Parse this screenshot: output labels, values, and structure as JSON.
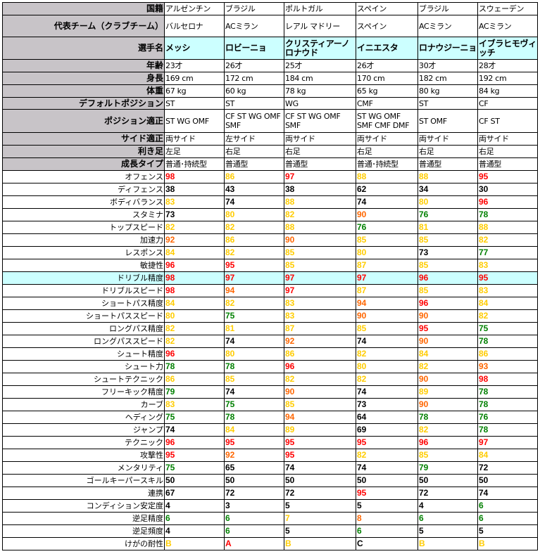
{
  "colors": {
    "r": "#ff0000",
    "o": "#ff6600",
    "y": "#ffcc00",
    "g": "#008000",
    "k": "#000000",
    "label_bg": "#c8c4c8",
    "highlight_bg": "#ccffff"
  },
  "info_rows": [
    {
      "label": "国籍",
      "values": [
        "アルゼンチン",
        "ブラジル",
        "ポルトガル",
        "スペイン",
        "ブラジル",
        "スウェーデン"
      ]
    },
    {
      "label": "代表チーム（クラブチーム）",
      "values": [
        "バルセロナ",
        "ACミラン",
        "レアル マドリー",
        "スペイン",
        "ACミラン",
        "ACミラン"
      ]
    },
    {
      "label": "選手名",
      "values": [
        "メッシ",
        "ロビーニョ",
        "クリスティアーノ ロナウド",
        "イニエスタ",
        "ロナウジーニョ",
        "イブラヒモヴィッチ"
      ],
      "name_row": true
    },
    {
      "label": "年齢",
      "values": [
        "23才",
        "26才",
        "25才",
        "26才",
        "30才",
        "28才"
      ]
    },
    {
      "label": "身長",
      "values": [
        "169 cm",
        "172 cm",
        "184 cm",
        "170 cm",
        "182 cm",
        "192 cm"
      ]
    },
    {
      "label": "体重",
      "values": [
        "67 kg",
        "60 kg",
        "78 kg",
        "65 kg",
        "80 kg",
        "84 kg"
      ]
    },
    {
      "label": "デフォルトポジション",
      "values": [
        "ST",
        "ST",
        "WG",
        "CMF",
        "ST",
        "CF"
      ]
    },
    {
      "label": "ポジション適正",
      "values": [
        "ST WG OMF",
        "CF ST WG OMF SMF",
        "CF ST WG OMF SMF",
        "ST WG OMF SMF CMF DMF",
        "ST OMF",
        "CF ST"
      ]
    },
    {
      "label": "サイド適正",
      "values": [
        "両サイド",
        "左サイド",
        "両サイド",
        "両サイド",
        "両サイド",
        "両サイド"
      ]
    },
    {
      "label": "利き足",
      "values": [
        "左足",
        "右足",
        "右足",
        "右足",
        "右足",
        "右足"
      ]
    },
    {
      "label": "成長タイプ",
      "values": [
        "普通･持続型",
        "普通型",
        "普通型",
        "普通･持続型",
        "普通型",
        "普通型"
      ]
    }
  ],
  "stat_rows": [
    {
      "label": "オフェンス",
      "values": [
        "98",
        "86",
        "97",
        "88",
        "88",
        "95"
      ],
      "colors": "ryryyr"
    },
    {
      "label": "ディフェンス",
      "values": [
        "38",
        "43",
        "38",
        "62",
        "34",
        "30"
      ],
      "colors": "kkkkkk"
    },
    {
      "label": "ボディバランス",
      "values": [
        "83",
        "74",
        "88",
        "74",
        "80",
        "96"
      ],
      "colors": "ykykyr"
    },
    {
      "label": "スタミナ",
      "values": [
        "73",
        "80",
        "82",
        "90",
        "76",
        "78"
      ],
      "colors": "kyyogg"
    },
    {
      "label": "トップスピード",
      "values": [
        "82",
        "82",
        "88",
        "76",
        "81",
        "88"
      ],
      "colors": "yyygyy"
    },
    {
      "label": "加速力",
      "values": [
        "92",
        "86",
        "90",
        "85",
        "85",
        "82"
      ],
      "colors": "oyoyyy"
    },
    {
      "label": "レスポンス",
      "values": [
        "84",
        "82",
        "85",
        "80",
        "73",
        "77"
      ],
      "colors": "yyyykg"
    },
    {
      "label": "敏捷性",
      "values": [
        "96",
        "95",
        "85",
        "87",
        "85",
        "83"
      ],
      "colors": "rryyyy"
    },
    {
      "label": "ドリブル精度",
      "values": [
        "98",
        "97",
        "97",
        "97",
        "96",
        "95"
      ],
      "colors": "rrrrrr",
      "highlight": true
    },
    {
      "label": "ドリブルスピード",
      "values": [
        "98",
        "94",
        "97",
        "87",
        "85",
        "83"
      ],
      "colors": "roryyy"
    },
    {
      "label": "ショートパス精度",
      "values": [
        "84",
        "82",
        "83",
        "94",
        "96",
        "84"
      ],
      "colors": "yyyory"
    },
    {
      "label": "ショートパススピード",
      "values": [
        "80",
        "75",
        "83",
        "90",
        "90",
        "82"
      ],
      "colors": "ygyooy"
    },
    {
      "label": "ロングパス精度",
      "values": [
        "82",
        "81",
        "87",
        "85",
        "95",
        "75"
      ],
      "colors": "yyyyrg"
    },
    {
      "label": "ロングパススピード",
      "values": [
        "82",
        "74",
        "92",
        "74",
        "90",
        "78"
      ],
      "colors": "ykokog"
    },
    {
      "label": "シュート精度",
      "values": [
        "96",
        "80",
        "86",
        "82",
        "84",
        "86"
      ],
      "colors": "ryyyyy"
    },
    {
      "label": "シュート力",
      "values": [
        "78",
        "78",
        "96",
        "80",
        "82",
        "93"
      ],
      "colors": "ggryyo"
    },
    {
      "label": "シュートテクニック",
      "values": [
        "86",
        "85",
        "82",
        "82",
        "90",
        "98"
      ],
      "colors": "yyyyor"
    },
    {
      "label": "フリーキック精度",
      "values": [
        "79",
        "74",
        "90",
        "74",
        "89",
        "78"
      ],
      "colors": "gkokyg"
    },
    {
      "label": "カーブ",
      "values": [
        "83",
        "75",
        "85",
        "73",
        "90",
        "78"
      ],
      "colors": "ygykog"
    },
    {
      "label": "ヘディング",
      "values": [
        "75",
        "78",
        "94",
        "64",
        "78",
        "76"
      ],
      "colors": "ggokgg"
    },
    {
      "label": "ジャンプ",
      "values": [
        "74",
        "84",
        "89",
        "69",
        "82",
        "78"
      ],
      "colors": "kyykyg"
    },
    {
      "label": "テクニック",
      "values": [
        "96",
        "95",
        "95",
        "95",
        "96",
        "97"
      ],
      "colors": "rrrrrr"
    },
    {
      "label": "攻撃性",
      "values": [
        "95",
        "92",
        "95",
        "82",
        "85",
        "84"
      ],
      "colors": "roryyy"
    },
    {
      "label": "メンタリティ",
      "values": [
        "75",
        "65",
        "74",
        "74",
        "79",
        "72"
      ],
      "colors": "gkkkgk"
    },
    {
      "label": "ゴールキーパースキル",
      "values": [
        "50",
        "50",
        "50",
        "50",
        "50",
        "50"
      ],
      "colors": "kkkkkk"
    },
    {
      "label": "連携",
      "values": [
        "67",
        "72",
        "72",
        "95",
        "72",
        "74"
      ],
      "colors": "kkkrkk"
    },
    {
      "label": "コンディション安定度",
      "values": [
        "4",
        "3",
        "5",
        "5",
        "4",
        "6"
      ],
      "colors": "kkkkkg"
    },
    {
      "label": "逆足精度",
      "values": [
        "6",
        "6",
        "7",
        "8",
        "6",
        "6"
      ],
      "colors": "ggyogg"
    },
    {
      "label": "逆足頻度",
      "values": [
        "4",
        "6",
        "5",
        "6",
        "5",
        "5"
      ],
      "colors": "kgkgkk"
    },
    {
      "label": "けがの耐性",
      "values": [
        "B",
        "A",
        "B",
        "C",
        "B",
        "B"
      ],
      "colors": "yrykyy"
    }
  ]
}
